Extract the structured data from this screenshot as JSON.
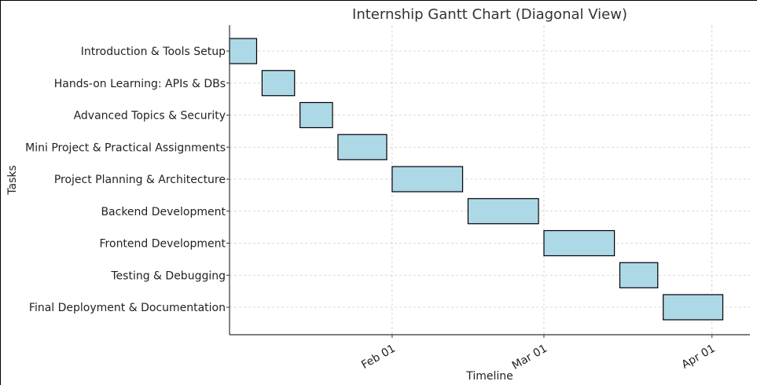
{
  "chart_data": {
    "type": "gantt",
    "title": "Internship Gantt Chart (Diagonal View)",
    "xlabel": "Timeline",
    "ylabel": "Tasks",
    "xlim": [
      "2025-01-02",
      "2025-04-08"
    ],
    "x_ticks": [
      {
        "date": "2025-02-01",
        "label": "Feb 01"
      },
      {
        "date": "2025-03-01",
        "label": "Mar 01"
      },
      {
        "date": "2025-04-01",
        "label": "Apr 01"
      }
    ],
    "grid": true,
    "bar_color": "#add8e6",
    "bar_edge_color": "#000000",
    "tasks": [
      {
        "name": "Introduction & Tools Setup",
        "start": "2025-01-02",
        "end": "2025-01-07"
      },
      {
        "name": "Hands-on Learning: APIs & DBs",
        "start": "2025-01-08",
        "end": "2025-01-14"
      },
      {
        "name": "Advanced Topics & Security",
        "start": "2025-01-15",
        "end": "2025-01-21"
      },
      {
        "name": "Mini Project & Practical Assignments",
        "start": "2025-01-22",
        "end": "2025-01-31"
      },
      {
        "name": "Project Planning & Architecture",
        "start": "2025-02-01",
        "end": "2025-02-14"
      },
      {
        "name": "Backend Development",
        "start": "2025-02-15",
        "end": "2025-02-28"
      },
      {
        "name": "Frontend Development",
        "start": "2025-03-01",
        "end": "2025-03-14"
      },
      {
        "name": "Testing & Debugging",
        "start": "2025-03-15",
        "end": "2025-03-22"
      },
      {
        "name": "Final Deployment & Documentation",
        "start": "2025-03-23",
        "end": "2025-04-03"
      }
    ]
  }
}
